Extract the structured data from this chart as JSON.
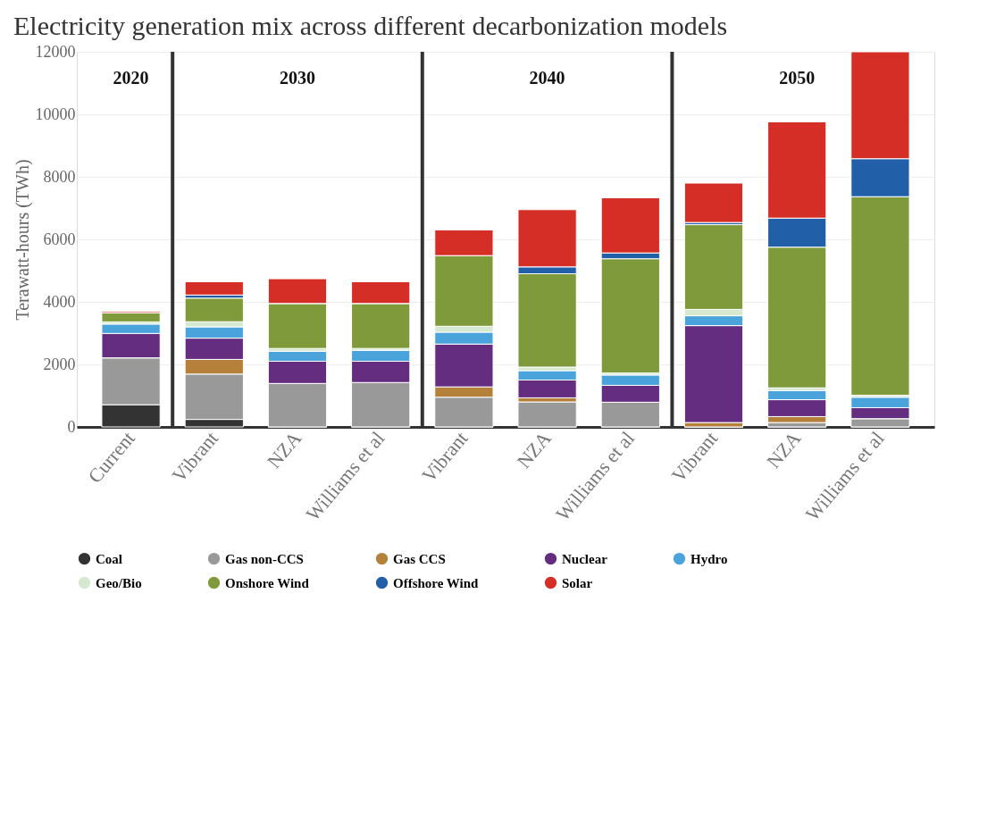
{
  "chart_data": {
    "type": "bar",
    "stacked": true,
    "title": "Electricity generation mix across different decarbonization models",
    "ylabel": "Terawatt-hours (TWh)",
    "categories": [
      "Current",
      "Vibrant",
      "NZA",
      "Williams et al",
      "Vibrant",
      "NZA",
      "Williams et al",
      "Vibrant",
      "NZA",
      "Williams et al"
    ],
    "annotations": [
      "2020",
      "2030",
      "2040",
      "2050"
    ],
    "ylim": [
      0,
      12000
    ],
    "yticks": [
      0,
      2000,
      4000,
      6000,
      8000,
      10000,
      12000
    ],
    "grid": "y",
    "legend": "bottom",
    "series": [
      {
        "name": "Coal",
        "color": "#333333",
        "values": [
          710,
          240,
          0,
          0,
          0,
          0,
          0,
          0,
          0,
          0
        ]
      },
      {
        "name": "Gas non-CCS",
        "color": "#999999",
        "values": [
          1500,
          1450,
          1390,
          1420,
          950,
          800,
          790,
          0,
          140,
          265
        ]
      },
      {
        "name": "Gas CCS",
        "color": "#b5803a",
        "values": [
          0,
          470,
          0,
          0,
          330,
          130,
          0,
          140,
          190,
          0
        ]
      },
      {
        "name": "Nuclear",
        "color": "#652d80",
        "values": [
          780,
          680,
          710,
          680,
          1370,
          570,
          540,
          3100,
          540,
          350
        ]
      },
      {
        "name": "Hydro",
        "color": "#4ba3dc",
        "values": [
          300,
          360,
          320,
          350,
          380,
          300,
          330,
          315,
          290,
          335
        ]
      },
      {
        "name": "Geo/Bio",
        "color": "#d5e8d0",
        "values": [
          70,
          165,
          90,
          60,
          190,
          115,
          65,
          205,
          90,
          65
        ]
      },
      {
        "name": "Onshore Wind",
        "color": "#7f9a3a",
        "values": [
          290,
          755,
          1440,
          1440,
          2260,
          2985,
          3655,
          2710,
          4500,
          6350
        ]
      },
      {
        "name": "Offshore Wind",
        "color": "#2160a8",
        "values": [
          null,
          100,
          0,
          0,
          0,
          220,
          185,
          70,
          930,
          1215
        ]
      },
      {
        "name": "Solar",
        "color": "#d42e26",
        "values": [
          40,
          425,
          790,
          695,
          820,
          1830,
          1765,
          1260,
          3080,
          3420
        ]
      }
    ]
  }
}
